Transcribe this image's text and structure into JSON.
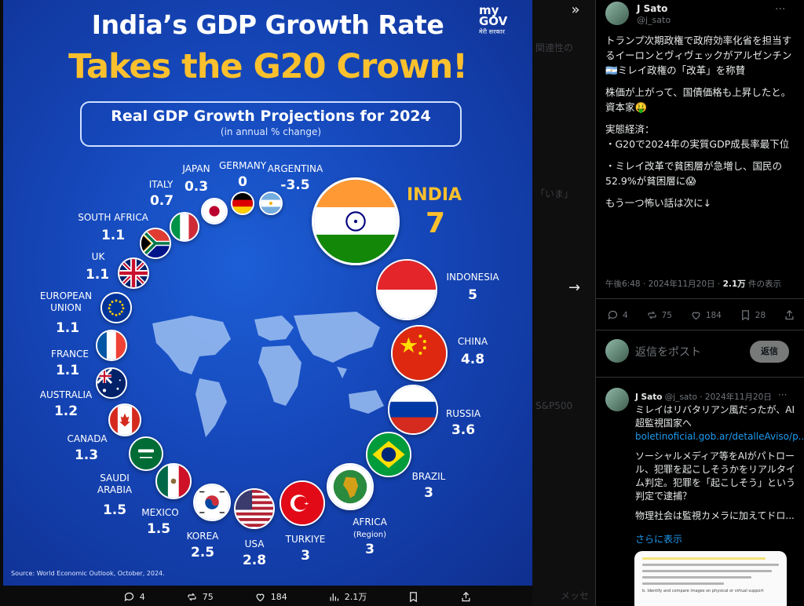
{
  "infographic": {
    "title_line1": "India’s GDP Growth Rate",
    "title_line2": "Takes the G20 Crown!",
    "brand": "my GOV",
    "brand_sub": "मेरी सरकार",
    "subtitle": "Real GDP Growth Projections for 2024",
    "subtitle_note": "(in annual % change)",
    "source": "Source: World Economic Outlook, October, 2024.",
    "countries": [
      {
        "name": "INDIA",
        "value": "7"
      },
      {
        "name": "INDONESIA",
        "value": "5"
      },
      {
        "name": "CHINA",
        "value": "4.8"
      },
      {
        "name": "RUSSIA",
        "value": "3.6"
      },
      {
        "name": "BRAZIL",
        "value": "3"
      },
      {
        "name": "AFRICA",
        "note": "(Region)",
        "value": "3"
      },
      {
        "name": "TURKIYE",
        "value": "3"
      },
      {
        "name": "USA",
        "value": "2.8"
      },
      {
        "name": "KOREA",
        "value": "2.5"
      },
      {
        "name": "MEXICO",
        "value": "1.5"
      },
      {
        "name": "SAUDI ARABIA",
        "value": "1.5"
      },
      {
        "name": "CANADA",
        "value": "1.3"
      },
      {
        "name": "AUSTRALIA",
        "value": "1.2"
      },
      {
        "name": "FRANCE",
        "value": "1.1"
      },
      {
        "name": "EUROPEAN UNION",
        "value": "1.1"
      },
      {
        "name": "UK",
        "value": "1.1"
      },
      {
        "name": "SOUTH AFRICA",
        "value": "1.1"
      },
      {
        "name": "ITALY",
        "value": "0.7"
      },
      {
        "name": "JAPAN",
        "value": "0.3"
      },
      {
        "name": "GERMANY",
        "value": "0"
      },
      {
        "name": "ARGENTINA",
        "value": "-3.5"
      }
    ]
  },
  "viewer_actions": {
    "replies": "4",
    "reposts": "75",
    "likes": "184",
    "views": "2.1万"
  },
  "background_ghost": {
    "related": "関連性の",
    "now": "「いま」",
    "sp500": "S&P500",
    "message": "メッセ"
  },
  "post": {
    "author": "J Sato",
    "handle": "@j_sato",
    "text": [
      "トランプ次期政権で政府効率化省を担当するイーロンとヴィヴェックがアルゼンチン🇦🇷ミレイ政権の「改革」を称賛",
      "株価が上がって、国債価格も上昇したと。資本家🤑",
      "実態経済：\n・G20で2024年の実質GDP成長率最下位",
      "・ミレイ改革で貧困層が急増し、国民の52.9%が貧困層に😱",
      "もう一つ怖い話は次に↓"
    ],
    "time": "午後6:48 · 2024年11月20日 ·",
    "views_count": "2.1万",
    "views_suffix": "件の表示",
    "actions": {
      "replies": "4",
      "reposts": "75",
      "likes": "184",
      "bookmarks": "28"
    }
  },
  "reply_box": {
    "placeholder": "返信をポスト",
    "button": "返信"
  },
  "reply": {
    "author": "J Sato",
    "handle_date": "@j_sato · 2024年11月20日",
    "line1": "ミレイはリバタリアン風だったが、AI超監視国家へ",
    "link": "boletinoficial.gob.ar/detalleAviso/p...",
    "para2": "ソーシャルメディア等をAIがパトロール、犯罪を起こしそうかをリアルタイム判定。犯罪を「起こしそう」という判定で逮捕？",
    "para3": "物理社会は監視カメラに加えてドロ...",
    "show_more": "さらに表示"
  },
  "doc_preview": {
    "snippet": "b. Identify and compare images on physical or virtual support"
  }
}
